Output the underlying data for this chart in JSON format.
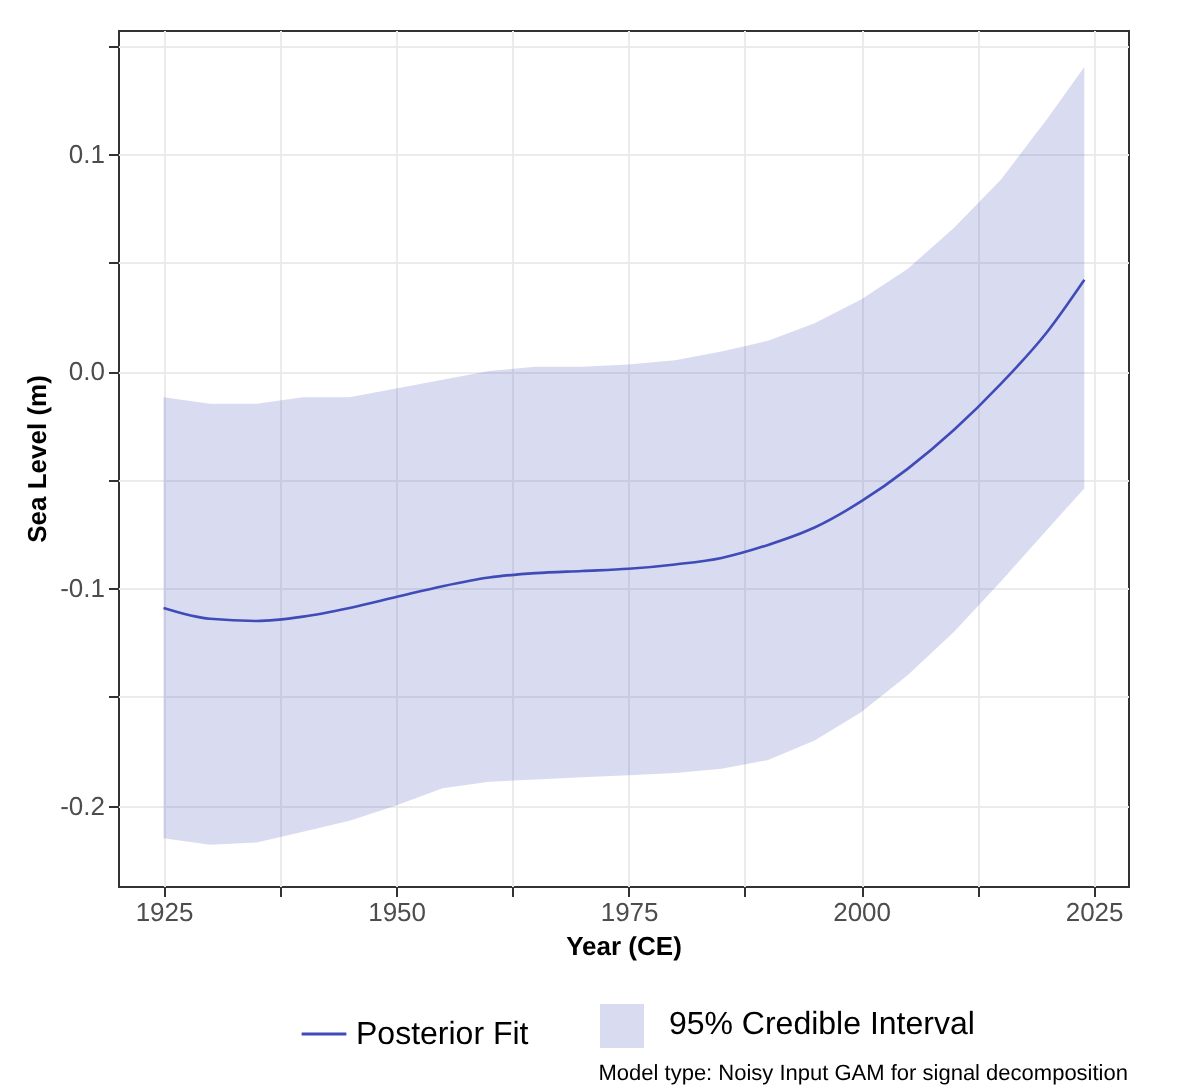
{
  "chart_data": {
    "type": "line",
    "xlabel": "Year (CE)",
    "ylabel": "Sea Level (m)",
    "annotations": [
      "95% Credible Interval",
      "Model type: Noisy Input GAM for signal decomposition"
    ],
    "x": [
      1925,
      1930,
      1935,
      1940,
      1945,
      1950,
      1955,
      1960,
      1965,
      1970,
      1975,
      1980,
      1985,
      1990,
      1995,
      2000,
      2005,
      2010,
      2015,
      2020,
      2024
    ],
    "series": [
      {
        "name": "Posterior Fit",
        "color": "#3f4cb8",
        "values": [
          -0.109,
          -0.114,
          -0.115,
          -0.113,
          -0.109,
          -0.104,
          -0.099,
          -0.095,
          -0.093,
          -0.092,
          -0.091,
          -0.089,
          -0.086,
          -0.08,
          -0.072,
          -0.06,
          -0.045,
          -0.027,
          -0.006,
          0.018,
          0.042
        ],
        "lower": [
          -0.215,
          -0.218,
          -0.217,
          -0.212,
          -0.207,
          -0.2,
          -0.192,
          -0.189,
          -0.188,
          -0.187,
          -0.186,
          -0.185,
          -0.183,
          -0.179,
          -0.17,
          -0.157,
          -0.14,
          -0.12,
          -0.097,
          -0.073,
          -0.054
        ],
        "upper": [
          -0.012,
          -0.015,
          -0.015,
          -0.012,
          -0.012,
          -0.008,
          -0.004,
          0.0,
          0.002,
          0.002,
          0.003,
          0.005,
          0.009,
          0.014,
          0.022,
          0.033,
          0.047,
          0.066,
          0.088,
          0.116,
          0.14
        ]
      }
    ],
    "xlim": [
      1920.1,
      2028.7
    ],
    "ylim": [
      -0.237,
      0.157
    ],
    "xticks": [
      1925,
      {
        "value": 1937.5,
        "label": null
      },
      1950,
      {
        "value": 1962.5,
        "label": null
      },
      1975,
      {
        "value": 1987.5,
        "label": null
      },
      2000,
      {
        "value": 2012.5,
        "label": null
      },
      2025
    ],
    "yticks": [
      -0.2,
      {
        "value": -0.15,
        "label": null
      },
      -0.1,
      {
        "value": -0.05,
        "label": null
      },
      {
        "value": 0,
        "label": "0.0"
      },
      {
        "value": 0.05,
        "label": null
      },
      0.1,
      {
        "value": 0.15,
        "label": null
      }
    ],
    "grid": true,
    "legend": "bottom"
  }
}
